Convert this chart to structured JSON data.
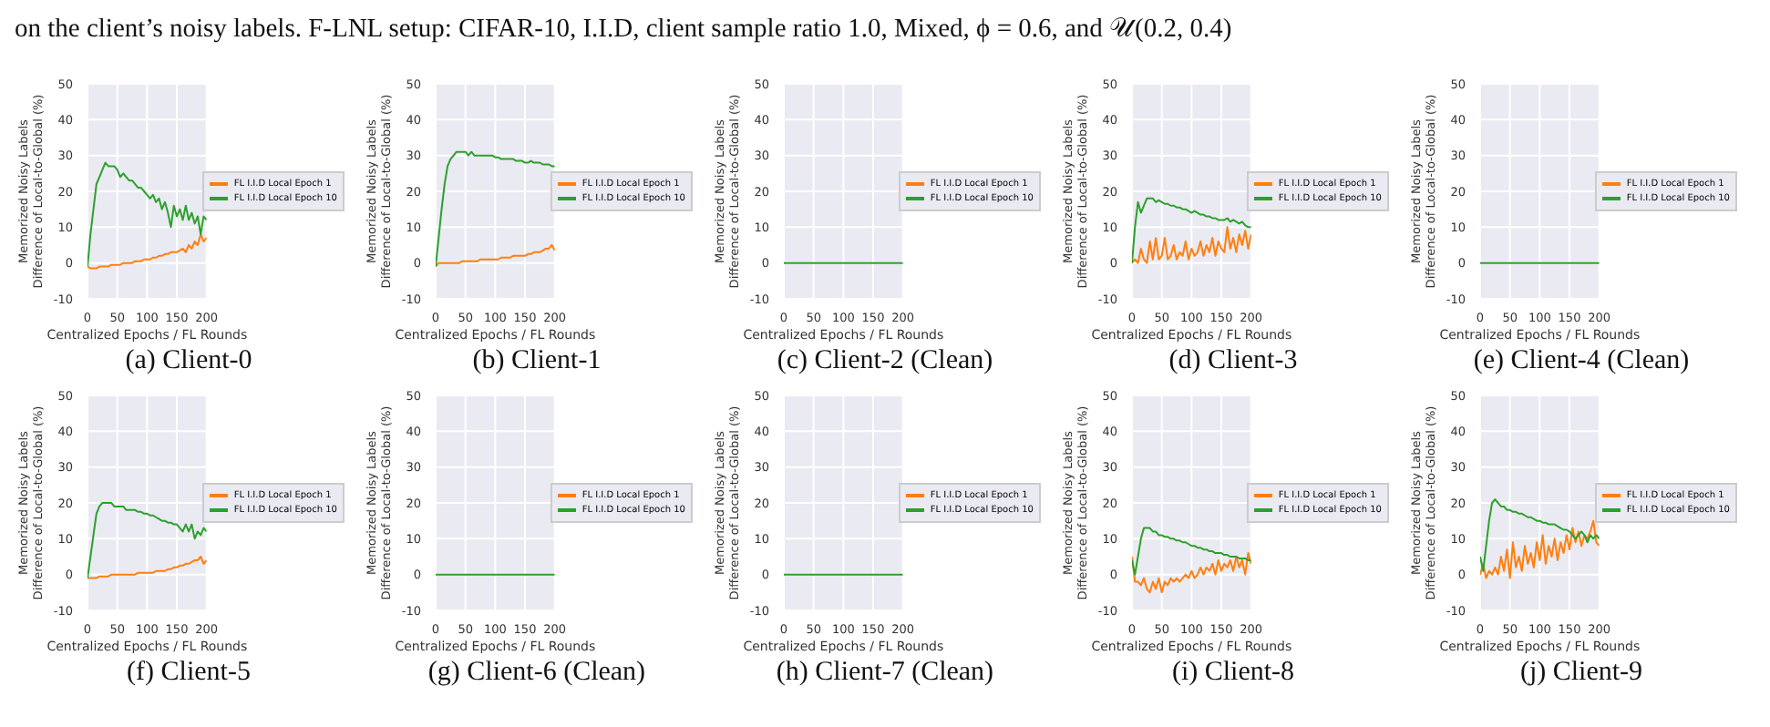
{
  "chart_data": [
    {
      "type": "other",
      "annotations": [
        "on the client’s noisy labels. F-LNL setup: CIFAR-10, I.I.D, client sample ratio 1.0, Mixed, ϕ = 0.6, and 𝒰(0.2, 0.4)"
      ]
    },
    {
      "type": "line",
      "title": "(a) Client-0",
      "xlabel": "Centralized Epochs / FL Rounds",
      "ylabel": "Memorized Noisy Labels\nDifference of Local-to-Global (%)",
      "xlim": [
        0,
        200
      ],
      "xticks": [
        0,
        50,
        100,
        150,
        200
      ],
      "ylim": [
        -10,
        50
      ],
      "yticks": [
        -10,
        0,
        10,
        20,
        30,
        40,
        50
      ],
      "grid": true,
      "legend": "right",
      "x": [
        0,
        5,
        10,
        15,
        20,
        25,
        30,
        35,
        40,
        45,
        50,
        55,
        60,
        65,
        70,
        75,
        80,
        85,
        90,
        95,
        100,
        105,
        110,
        115,
        120,
        125,
        130,
        135,
        140,
        145,
        150,
        155,
        160,
        165,
        170,
        175,
        180,
        185,
        190,
        195,
        200
      ],
      "series": [
        {
          "name": "FL I.I.D Local Epoch 1",
          "color": "#ff7f0e",
          "values": [
            -1,
            -1.5,
            -1.5,
            -1.5,
            -1,
            -1,
            -1,
            -1,
            -0.5,
            -0.5,
            -0.5,
            -0.5,
            0,
            0,
            0,
            0,
            0.5,
            0.5,
            0.5,
            1,
            1,
            1,
            1.5,
            1.5,
            2,
            2,
            2.5,
            2.5,
            3,
            3,
            3,
            3.5,
            4,
            3,
            5,
            4,
            6,
            5,
            8,
            6,
            7
          ]
        },
        {
          "name": "FL I.I.D Local Epoch 10",
          "color": "#2ca02c",
          "values": [
            -1,
            8,
            15,
            22,
            24,
            26,
            28,
            27,
            27,
            27,
            26,
            24,
            25,
            24,
            23,
            23,
            22,
            21,
            21,
            20,
            19,
            18,
            19,
            17,
            18,
            15,
            17,
            14,
            10,
            16,
            13,
            15,
            12,
            16,
            12,
            14,
            11,
            13,
            8,
            13,
            12
          ]
        }
      ]
    },
    {
      "type": "line",
      "title": "(b) Client-1",
      "xlabel": "Centralized Epochs / FL Rounds",
      "ylabel": "Memorized Noisy Labels\nDifference of Local-to-Global (%)",
      "xlim": [
        0,
        200
      ],
      "xticks": [
        0,
        50,
        100,
        150,
        200
      ],
      "ylim": [
        -10,
        50
      ],
      "yticks": [
        -10,
        0,
        10,
        20,
        30,
        40,
        50
      ],
      "grid": true,
      "legend": "right",
      "x": [
        0,
        5,
        10,
        15,
        20,
        25,
        30,
        35,
        40,
        45,
        50,
        55,
        60,
        65,
        70,
        75,
        80,
        85,
        90,
        95,
        100,
        105,
        110,
        115,
        120,
        125,
        130,
        135,
        140,
        145,
        150,
        155,
        160,
        165,
        170,
        175,
        180,
        185,
        190,
        195,
        200
      ],
      "series": [
        {
          "name": "FL I.I.D Local Epoch 1",
          "color": "#ff7f0e",
          "values": [
            -1,
            0,
            0,
            0,
            0,
            0,
            0,
            0,
            0,
            0.5,
            0.5,
            0.5,
            0.5,
            0.5,
            0.5,
            1,
            1,
            1,
            1,
            1,
            1,
            1,
            1.5,
            1.5,
            1.5,
            1.5,
            2,
            2,
            2,
            2,
            2,
            2.5,
            2.5,
            3,
            3,
            3,
            3.5,
            4,
            4,
            5,
            3.5
          ]
        },
        {
          "name": "FL I.I.D Local Epoch 10",
          "color": "#2ca02c",
          "values": [
            -1,
            7,
            15,
            22,
            27,
            29,
            30,
            31,
            31,
            31,
            31,
            30,
            31,
            30,
            30,
            30,
            30,
            30,
            30,
            30,
            29.5,
            29.5,
            29,
            29,
            29,
            29,
            29,
            28.5,
            28.5,
            28.5,
            28,
            28,
            28.5,
            28,
            28,
            28,
            27.5,
            27.5,
            27.5,
            27,
            27
          ]
        }
      ]
    },
    {
      "type": "line",
      "title": "(c) Client-2 (Clean)",
      "xlabel": "Centralized Epochs / FL Rounds",
      "ylabel": "Memorized Noisy Labels\nDifference of Local-to-Global (%)",
      "xlim": [
        0,
        200
      ],
      "xticks": [
        0,
        50,
        100,
        150,
        200
      ],
      "ylim": [
        -10,
        50
      ],
      "yticks": [
        -10,
        0,
        10,
        20,
        30,
        40,
        50
      ],
      "grid": true,
      "legend": "right",
      "x": [
        0,
        200
      ],
      "series": [
        {
          "name": "FL I.I.D Local Epoch 1",
          "color": "#ff7f0e",
          "values": [
            null,
            null
          ]
        },
        {
          "name": "FL I.I.D Local Epoch 10",
          "color": "#2ca02c",
          "values": [
            0,
            0
          ]
        }
      ]
    },
    {
      "type": "line",
      "title": "(d) Client-3",
      "xlabel": "Centralized Epochs / FL Rounds",
      "ylabel": "Memorized Noisy Labels\nDifference of Local-to-Global (%)",
      "xlim": [
        0,
        200
      ],
      "xticks": [
        0,
        50,
        100,
        150,
        200
      ],
      "ylim": [
        -10,
        50
      ],
      "yticks": [
        -10,
        0,
        10,
        20,
        30,
        40,
        50
      ],
      "grid": true,
      "legend": "right",
      "x": [
        0,
        5,
        10,
        15,
        20,
        25,
        30,
        35,
        40,
        45,
        50,
        55,
        60,
        65,
        70,
        75,
        80,
        85,
        90,
        95,
        100,
        105,
        110,
        115,
        120,
        125,
        130,
        135,
        140,
        145,
        150,
        155,
        160,
        165,
        170,
        175,
        180,
        185,
        190,
        195,
        200
      ],
      "series": [
        {
          "name": "FL I.I.D Local Epoch 1",
          "color": "#ff7f0e",
          "values": [
            0,
            1,
            0,
            4,
            1,
            0,
            6,
            1,
            7,
            1,
            2,
            7,
            1,
            2,
            5,
            1,
            3,
            2,
            6,
            1,
            4,
            2,
            3,
            6,
            2,
            5,
            3,
            7,
            2,
            6,
            4,
            3,
            10,
            4,
            7,
            3,
            8,
            5,
            9,
            4,
            8
          ]
        },
        {
          "name": "FL I.I.D Local Epoch 10",
          "color": "#2ca02c",
          "values": [
            0,
            10,
            17,
            14,
            16,
            18,
            18,
            18,
            17,
            17.5,
            17,
            16.5,
            16.5,
            16,
            16,
            15.5,
            15.5,
            15,
            15,
            14.5,
            14,
            14.5,
            14,
            13.5,
            13.5,
            13,
            13,
            12.5,
            12.5,
            12,
            12,
            12,
            12.5,
            11.5,
            12,
            11.5,
            11,
            11.5,
            10.5,
            10,
            10
          ]
        }
      ]
    },
    {
      "type": "line",
      "title": "(e) Client-4 (Clean)",
      "xlabel": "Centralized Epochs / FL Rounds",
      "ylabel": "Memorized Noisy Labels\nDifference of Local-to-Global (%)",
      "xlim": [
        0,
        200
      ],
      "xticks": [
        0,
        50,
        100,
        150,
        200
      ],
      "ylim": [
        -10,
        50
      ],
      "yticks": [
        -10,
        0,
        10,
        20,
        30,
        40,
        50
      ],
      "grid": true,
      "legend": "right",
      "x": [
        0,
        200
      ],
      "series": [
        {
          "name": "FL I.I.D Local Epoch 1",
          "color": "#ff7f0e",
          "values": [
            null,
            null
          ]
        },
        {
          "name": "FL I.I.D Local Epoch 10",
          "color": "#2ca02c",
          "values": [
            0,
            0
          ]
        }
      ]
    },
    {
      "type": "line",
      "title": "(f) Client-5",
      "xlabel": "Centralized Epochs / FL Rounds",
      "ylabel": "Memorized Noisy Labels\nDifference of Local-to-Global (%)",
      "xlim": [
        0,
        200
      ],
      "xticks": [
        0,
        50,
        100,
        150,
        200
      ],
      "ylim": [
        -10,
        50
      ],
      "yticks": [
        -10,
        0,
        10,
        20,
        30,
        40,
        50
      ],
      "grid": true,
      "legend": "right",
      "x": [
        0,
        5,
        10,
        15,
        20,
        25,
        30,
        35,
        40,
        45,
        50,
        55,
        60,
        65,
        70,
        75,
        80,
        85,
        90,
        95,
        100,
        105,
        110,
        115,
        120,
        125,
        130,
        135,
        140,
        145,
        150,
        155,
        160,
        165,
        170,
        175,
        180,
        185,
        190,
        195,
        200
      ],
      "series": [
        {
          "name": "FL I.I.D Local Epoch 1",
          "color": "#ff7f0e",
          "values": [
            -1,
            -1,
            -1,
            -1,
            -0.5,
            -0.5,
            -0.5,
            -0.5,
            0,
            0,
            0,
            0,
            0,
            0,
            0,
            0,
            0,
            0.5,
            0.5,
            0.5,
            0.5,
            0.5,
            0.5,
            1,
            1,
            1,
            1,
            1.5,
            1.5,
            2,
            2,
            2.5,
            2.5,
            3,
            3,
            3.5,
            4,
            4,
            5,
            3,
            4
          ]
        },
        {
          "name": "FL I.I.D Local Epoch 10",
          "color": "#2ca02c",
          "values": [
            -1,
            5,
            11,
            17,
            19,
            20,
            20,
            20,
            20,
            19,
            19,
            19,
            19,
            18,
            18,
            18,
            18,
            17.5,
            17.5,
            17,
            17,
            16.5,
            16.5,
            16,
            15.5,
            15,
            15,
            14.5,
            14.5,
            14,
            14,
            13,
            12,
            14,
            12,
            14,
            10,
            12,
            11,
            13,
            12
          ]
        }
      ]
    },
    {
      "type": "line",
      "title": "(g) Client-6 (Clean)",
      "xlabel": "Centralized Epochs / FL Rounds",
      "ylabel": "Memorized Noisy Labels\nDifference of Local-to-Global (%)",
      "xlim": [
        0,
        200
      ],
      "xticks": [
        0,
        50,
        100,
        150,
        200
      ],
      "ylim": [
        -10,
        50
      ],
      "yticks": [
        -10,
        0,
        10,
        20,
        30,
        40,
        50
      ],
      "grid": true,
      "legend": "right",
      "x": [
        0,
        200
      ],
      "series": [
        {
          "name": "FL I.I.D Local Epoch 1",
          "color": "#ff7f0e",
          "values": [
            null,
            null
          ]
        },
        {
          "name": "FL I.I.D Local Epoch 10",
          "color": "#2ca02c",
          "values": [
            0,
            0
          ]
        }
      ]
    },
    {
      "type": "line",
      "title": "(h) Client-7 (Clean)",
      "xlabel": "Centralized Epochs / FL Rounds",
      "ylabel": "Memorized Noisy Labels\nDifference of Local-to-Global (%)",
      "xlim": [
        0,
        200
      ],
      "xticks": [
        0,
        50,
        100,
        150,
        200
      ],
      "ylim": [
        -10,
        50
      ],
      "yticks": [
        -10,
        0,
        10,
        20,
        30,
        40,
        50
      ],
      "grid": true,
      "legend": "right",
      "x": [
        0,
        200
      ],
      "series": [
        {
          "name": "FL I.I.D Local Epoch 1",
          "color": "#ff7f0e",
          "values": [
            null,
            null
          ]
        },
        {
          "name": "FL I.I.D Local Epoch 10",
          "color": "#2ca02c",
          "values": [
            0,
            0
          ]
        }
      ]
    },
    {
      "type": "line",
      "title": "(i) Client-8",
      "xlabel": "Centralized Epochs / FL Rounds",
      "ylabel": "Memorized Noisy Labels\nDifference of Local-to-Global (%)",
      "xlim": [
        0,
        200
      ],
      "xticks": [
        0,
        50,
        100,
        150,
        200
      ],
      "ylim": [
        -10,
        50
      ],
      "yticks": [
        -10,
        0,
        10,
        20,
        30,
        40,
        50
      ],
      "grid": true,
      "legend": "right",
      "x": [
        0,
        5,
        10,
        15,
        20,
        25,
        30,
        35,
        40,
        45,
        50,
        55,
        60,
        65,
        70,
        75,
        80,
        85,
        90,
        95,
        100,
        105,
        110,
        115,
        120,
        125,
        130,
        135,
        140,
        145,
        150,
        155,
        160,
        165,
        170,
        175,
        180,
        185,
        190,
        195,
        200
      ],
      "series": [
        {
          "name": "FL I.I.D Local Epoch 1",
          "color": "#ff7f0e",
          "values": [
            5,
            -2,
            -2,
            -3,
            -1,
            -4,
            -5,
            -2,
            -4,
            -1,
            -5,
            -2,
            -3,
            -1,
            -2,
            -1,
            -2,
            -1,
            0,
            -1,
            1,
            -1,
            0,
            2,
            0,
            2,
            1,
            3,
            0,
            4,
            1,
            3,
            2,
            4,
            1,
            5,
            2,
            4,
            0,
            6,
            3
          ]
        },
        {
          "name": "FL I.I.D Local Epoch 10",
          "color": "#2ca02c",
          "values": [
            4,
            0,
            5,
            10,
            13,
            13,
            13,
            12,
            12,
            11,
            11,
            10.5,
            10.5,
            10,
            10,
            9.5,
            9.5,
            9,
            9,
            8.5,
            8,
            8,
            7.5,
            7.5,
            7,
            7,
            6.5,
            6.5,
            6,
            6,
            6,
            5.5,
            5.5,
            5,
            5,
            5,
            4.5,
            4.5,
            4.5,
            4,
            4
          ]
        }
      ]
    },
    {
      "type": "line",
      "title": "(j) Client-9",
      "xlabel": "Centralized Epochs / FL Rounds",
      "ylabel": "Memorized Noisy Labels\nDifference of Local-to-Global (%)",
      "xlim": [
        0,
        200
      ],
      "xticks": [
        0,
        50,
        100,
        150,
        200
      ],
      "ylim": [
        -10,
        50
      ],
      "yticks": [
        -10,
        0,
        10,
        20,
        30,
        40,
        50
      ],
      "grid": true,
      "legend": "right",
      "x": [
        0,
        5,
        10,
        15,
        20,
        25,
        30,
        35,
        40,
        45,
        50,
        55,
        60,
        65,
        70,
        75,
        80,
        85,
        90,
        95,
        100,
        105,
        110,
        115,
        120,
        125,
        130,
        135,
        140,
        145,
        150,
        155,
        160,
        165,
        170,
        175,
        180,
        185,
        190,
        195,
        200
      ],
      "series": [
        {
          "name": "FL I.I.D Local Epoch 1",
          "color": "#ff7f0e",
          "values": [
            0,
            3,
            -1,
            1,
            0,
            2,
            0,
            5,
            1,
            7,
            -1,
            9,
            2,
            5,
            1,
            8,
            3,
            6,
            2,
            9,
            4,
            11,
            3,
            8,
            5,
            10,
            4,
            9,
            6,
            11,
            7,
            13,
            9,
            12,
            8,
            11,
            10,
            12,
            15,
            9,
            8
          ]
        },
        {
          "name": "FL I.I.D Local Epoch 10",
          "color": "#2ca02c",
          "values": [
            5,
            1,
            8,
            15,
            20,
            21,
            20,
            19,
            19,
            18,
            18,
            17.5,
            17.5,
            17,
            17,
            16.5,
            16,
            16,
            15.5,
            15,
            15,
            14.5,
            14.5,
            14,
            14,
            14,
            13.5,
            13,
            12.5,
            12.5,
            12,
            11,
            10,
            11,
            12,
            11,
            9,
            11,
            10,
            11,
            10
          ]
        }
      ]
    }
  ]
}
